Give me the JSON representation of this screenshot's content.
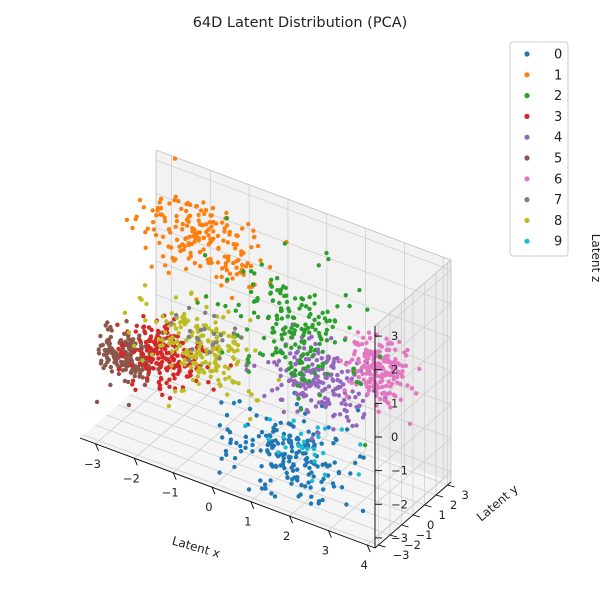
{
  "chart_data": {
    "type": "scatter",
    "subtype": "3d-scatter",
    "title": "64D Latent Distribution (PCA)",
    "xlabel": "Latent x",
    "ylabel": "Latent y",
    "zlabel": "Latent z",
    "xlim": [
      -3.4,
      4.2
    ],
    "ylim": [
      -3.3,
      3.3
    ],
    "zlim": [
      -3.3,
      3.3
    ],
    "xticks": [
      "−3",
      "−2",
      "−1",
      "0",
      "1",
      "2",
      "3",
      "4"
    ],
    "yticks": [
      "−3",
      "−2",
      "−1",
      "0",
      "1",
      "2",
      "3"
    ],
    "zticks": [
      "−3",
      "−2",
      "−1",
      "0",
      "1",
      "2",
      "3"
    ],
    "grid": true,
    "legend_position": "top-right",
    "series": [
      {
        "name": "0",
        "color": "#1f77b4",
        "center": [
          1.6,
          -1.9,
          -2.0
        ],
        "spread": [
          0.8,
          0.7,
          0.55
        ]
      },
      {
        "name": "1",
        "color": "#ff7f0e",
        "center": [
          -1.8,
          2.2,
          1.7
        ],
        "spread": [
          0.9,
          0.6,
          0.55
        ]
      },
      {
        "name": "2",
        "color": "#2ca02c",
        "center": [
          0.8,
          1.2,
          0.4
        ],
        "spread": [
          0.8,
          0.7,
          0.8
        ]
      },
      {
        "name": "3",
        "color": "#d62728",
        "center": [
          -1.9,
          -1.0,
          -0.9
        ],
        "spread": [
          0.5,
          0.5,
          0.4
        ]
      },
      {
        "name": "4",
        "color": "#9467bd",
        "center": [
          1.6,
          0.6,
          -0.6
        ],
        "spread": [
          0.6,
          0.7,
          0.5
        ]
      },
      {
        "name": "5",
        "color": "#8c564b",
        "center": [
          -2.8,
          -1.2,
          -1.2
        ],
        "spread": [
          0.4,
          0.4,
          0.35
        ]
      },
      {
        "name": "6",
        "color": "#e377c2",
        "center": [
          2.8,
          1.8,
          -0.1
        ],
        "spread": [
          0.4,
          0.5,
          0.45
        ]
      },
      {
        "name": "7",
        "color": "#7f7f7f",
        "center": [
          -1.0,
          0.2,
          -0.4
        ],
        "spread": [
          0.5,
          0.5,
          0.4
        ]
      },
      {
        "name": "8",
        "color": "#bcbd22",
        "center": [
          -1.2,
          -0.2,
          -0.6
        ],
        "spread": [
          0.7,
          0.7,
          0.5
        ]
      },
      {
        "name": "9",
        "color": "#17becf",
        "center": [
          1.8,
          -1.8,
          -1.6
        ],
        "spread": [
          0.6,
          0.5,
          0.4
        ]
      }
    ]
  }
}
